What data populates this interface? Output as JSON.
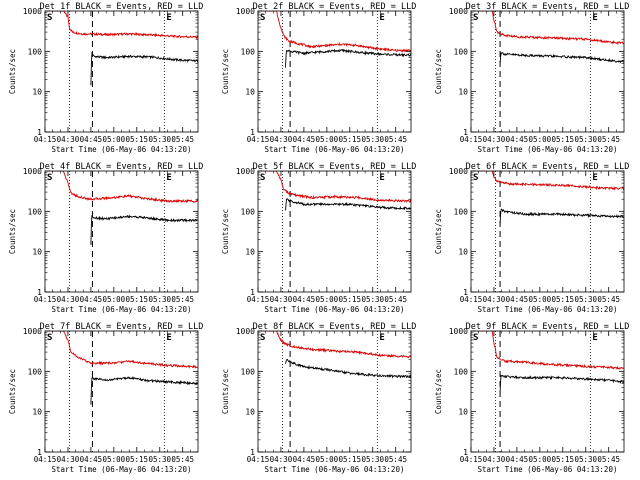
{
  "chart_data": {
    "type": "line",
    "colors": {
      "events": "#000000",
      "lld": "#dd0000",
      "axis": "#000000",
      "background": "#ffffff"
    },
    "x_tick_labels": [
      "04:15",
      "04:30",
      "04:45",
      "05:00",
      "05:15",
      "05:30",
      "05:45"
    ],
    "x_tick_minutes": [
      0,
      15,
      30,
      45,
      60,
      75,
      90
    ],
    "x_range_minutes": [
      0,
      100
    ],
    "ylabel": "Counts/sec",
    "y_scale": "log",
    "ylim": [
      1,
      1000
    ],
    "y_tick_labels": [
      "1",
      "10",
      "100",
      "1000"
    ],
    "y_tick_values": [
      1,
      10,
      100,
      1000
    ],
    "xlabel": "Start Time (06-May-06 04:13:20)",
    "markers": {
      "start_flag": "S",
      "end_flag": "E"
    },
    "grid": false,
    "panels": [
      {
        "title": "Det 1f BLACK = Events, RED = LLD",
        "dotted_markers_min": [
          16,
          78
        ],
        "dashed_marker_min": [
          31
        ],
        "series": [
          {
            "key": "lld",
            "values": [
              [
                0,
                1000
              ],
              [
                12,
                1000
              ],
              [
                15,
                700
              ],
              [
                16,
                380
              ],
              [
                18,
                300
              ],
              [
                22,
                280
              ],
              [
                25,
                270
              ],
              [
                30,
                270
              ],
              [
                40,
                260
              ],
              [
                55,
                270
              ],
              [
                70,
                255
              ],
              [
                85,
                235
              ],
              [
                100,
                225
              ]
            ]
          },
          {
            "key": "events",
            "values": [
              [
                30,
                15
              ],
              [
                30.5,
                90
              ],
              [
                32,
                75
              ],
              [
                40,
                70
              ],
              [
                55,
                75
              ],
              [
                70,
                72
              ],
              [
                80,
                65
              ],
              [
                90,
                60
              ],
              [
                100,
                58
              ]
            ]
          }
        ]
      },
      {
        "title": "Det 2f BLACK = Events, RED = LLD",
        "dotted_markers_min": [
          16,
          78
        ],
        "dashed_marker_min": [
          21
        ],
        "series": [
          {
            "key": "lld",
            "values": [
              [
                0,
                1000
              ],
              [
                12,
                1000
              ],
              [
                14,
                500
              ],
              [
                17,
                240
              ],
              [
                20,
                180
              ],
              [
                25,
                160
              ],
              [
                35,
                130
              ],
              [
                45,
                140
              ],
              [
                55,
                150
              ],
              [
                65,
                140
              ],
              [
                75,
                120
              ],
              [
                90,
                105
              ],
              [
                100,
                105
              ]
            ]
          },
          {
            "key": "events",
            "values": [
              [
                18,
                40
              ],
              [
                18.5,
                110
              ],
              [
                21,
                100
              ],
              [
                30,
                90
              ],
              [
                45,
                100
              ],
              [
                55,
                105
              ],
              [
                65,
                95
              ],
              [
                80,
                85
              ],
              [
                100,
                80
              ]
            ]
          }
        ]
      },
      {
        "title": "Det 3f BLACK = Events, RED = LLD",
        "dotted_markers_min": [
          16,
          78
        ],
        "dashed_marker_min": [
          19
        ],
        "series": [
          {
            "key": "lld",
            "values": [
              [
                0,
                1000
              ],
              [
                14,
                1000
              ],
              [
                15,
                600
              ],
              [
                17,
                300
              ],
              [
                22,
                250
              ],
              [
                30,
                230
              ],
              [
                45,
                220
              ],
              [
                60,
                210
              ],
              [
                75,
                200
              ],
              [
                90,
                170
              ],
              [
                100,
                160
              ]
            ]
          },
          {
            "key": "events",
            "values": [
              [
                19,
                50
              ],
              [
                19.5,
                95
              ],
              [
                22,
                85
              ],
              [
                35,
                80
              ],
              [
                55,
                75
              ],
              [
                75,
                70
              ],
              [
                90,
                60
              ],
              [
                100,
                55
              ]
            ]
          }
        ]
      },
      {
        "title": "Det 4f BLACK = Events, RED = LLD",
        "dotted_markers_min": [
          16,
          78
        ],
        "dashed_marker_min": [
          31
        ],
        "series": [
          {
            "key": "lld",
            "values": [
              [
                0,
                1000
              ],
              [
                12,
                1000
              ],
              [
                15,
                500
              ],
              [
                17,
                280
              ],
              [
                22,
                230
              ],
              [
                30,
                200
              ],
              [
                45,
                220
              ],
              [
                55,
                240
              ],
              [
                65,
                210
              ],
              [
                80,
                180
              ],
              [
                100,
                180
              ]
            ]
          },
          {
            "key": "events",
            "values": [
              [
                30,
                15
              ],
              [
                30.5,
                80
              ],
              [
                32,
                70
              ],
              [
                40,
                65
              ],
              [
                55,
                75
              ],
              [
                65,
                70
              ],
              [
                80,
                60
              ],
              [
                100,
                60
              ]
            ]
          }
        ]
      },
      {
        "title": "Det 5f BLACK = Events, RED = LLD",
        "dotted_markers_min": [
          16,
          78
        ],
        "dashed_marker_min": [
          21
        ],
        "series": [
          {
            "key": "lld",
            "values": [
              [
                0,
                1000
              ],
              [
                12,
                1000
              ],
              [
                15,
                600
              ],
              [
                17,
                350
              ],
              [
                20,
                280
              ],
              [
                25,
                250
              ],
              [
                35,
                220
              ],
              [
                50,
                230
              ],
              [
                65,
                220
              ],
              [
                80,
                190
              ],
              [
                100,
                180
              ]
            ]
          },
          {
            "key": "events",
            "values": [
              [
                18,
                100
              ],
              [
                18.5,
                200
              ],
              [
                21,
                180
              ],
              [
                30,
                150
              ],
              [
                45,
                150
              ],
              [
                60,
                150
              ],
              [
                75,
                130
              ],
              [
                90,
                120
              ],
              [
                100,
                120
              ]
            ]
          }
        ]
      },
      {
        "title": "Det 6f BLACK = Events, RED = LLD",
        "dotted_markers_min": [
          16,
          78
        ],
        "dashed_marker_min": [
          19
        ],
        "series": [
          {
            "key": "lld",
            "values": [
              [
                0,
                1000
              ],
              [
                14,
                1000
              ],
              [
                15,
                700
              ],
              [
                17,
                550
              ],
              [
                25,
                480
              ],
              [
                40,
                460
              ],
              [
                55,
                450
              ],
              [
                70,
                420
              ],
              [
                85,
                380
              ],
              [
                100,
                370
              ]
            ]
          },
          {
            "key": "events",
            "values": [
              [
                19,
                50
              ],
              [
                19.5,
                110
              ],
              [
                22,
                100
              ],
              [
                35,
                85
              ],
              [
                55,
                85
              ],
              [
                75,
                80
              ],
              [
                90,
                75
              ],
              [
                100,
                75
              ]
            ]
          }
        ]
      },
      {
        "title": "Det 7f BLACK = Events, RED = LLD",
        "dotted_markers_min": [
          16,
          78
        ],
        "dashed_marker_min": [
          31
        ],
        "series": [
          {
            "key": "lld",
            "values": [
              [
                0,
                1000
              ],
              [
                12,
                1000
              ],
              [
                15,
                600
              ],
              [
                17,
                300
              ],
              [
                22,
                220
              ],
              [
                30,
                160
              ],
              [
                45,
                160
              ],
              [
                55,
                180
              ],
              [
                65,
                160
              ],
              [
                80,
                140
              ],
              [
                100,
                130
              ]
            ]
          },
          {
            "key": "events",
            "values": [
              [
                30,
                15
              ],
              [
                30.5,
                70
              ],
              [
                32,
                65
              ],
              [
                40,
                60
              ],
              [
                55,
                70
              ],
              [
                65,
                60
              ],
              [
                80,
                55
              ],
              [
                100,
                50
              ]
            ]
          }
        ]
      },
      {
        "title": "Det 8f BLACK = Events, RED = LLD",
        "dotted_markers_min": [
          16,
          78
        ],
        "dashed_marker_min": [
          21
        ],
        "series": [
          {
            "key": "lld",
            "values": [
              [
                0,
                1000
              ],
              [
                12,
                1000
              ],
              [
                15,
                600
              ],
              [
                17,
                500
              ],
              [
                22,
                420
              ],
              [
                35,
                350
              ],
              [
                50,
                320
              ],
              [
                65,
                300
              ],
              [
                80,
                250
              ],
              [
                100,
                230
              ]
            ]
          },
          {
            "key": "events",
            "values": [
              [
                18,
                150
              ],
              [
                18.5,
                200
              ],
              [
                21,
                170
              ],
              [
                30,
                130
              ],
              [
                45,
                110
              ],
              [
                60,
                90
              ],
              [
                75,
                80
              ],
              [
                90,
                75
              ],
              [
                100,
                75
              ]
            ]
          }
        ]
      },
      {
        "title": "Det 9f BLACK = Events, RED = LLD",
        "dotted_markers_min": [
          16,
          78
        ],
        "dashed_marker_min": [
          19
        ],
        "series": [
          {
            "key": "lld",
            "values": [
              [
                0,
                1000
              ],
              [
                14,
                1000
              ],
              [
                15,
                500
              ],
              [
                17,
                220
              ],
              [
                22,
                180
              ],
              [
                35,
                170
              ],
              [
                50,
                150
              ],
              [
                65,
                140
              ],
              [
                80,
                130
              ],
              [
                100,
                120
              ]
            ]
          },
          {
            "key": "events",
            "values": [
              [
                19,
                30
              ],
              [
                19.5,
                80
              ],
              [
                22,
                75
              ],
              [
                35,
                70
              ],
              [
                55,
                70
              ],
              [
                75,
                65
              ],
              [
                90,
                60
              ],
              [
                100,
                55
              ]
            ]
          }
        ]
      }
    ]
  }
}
